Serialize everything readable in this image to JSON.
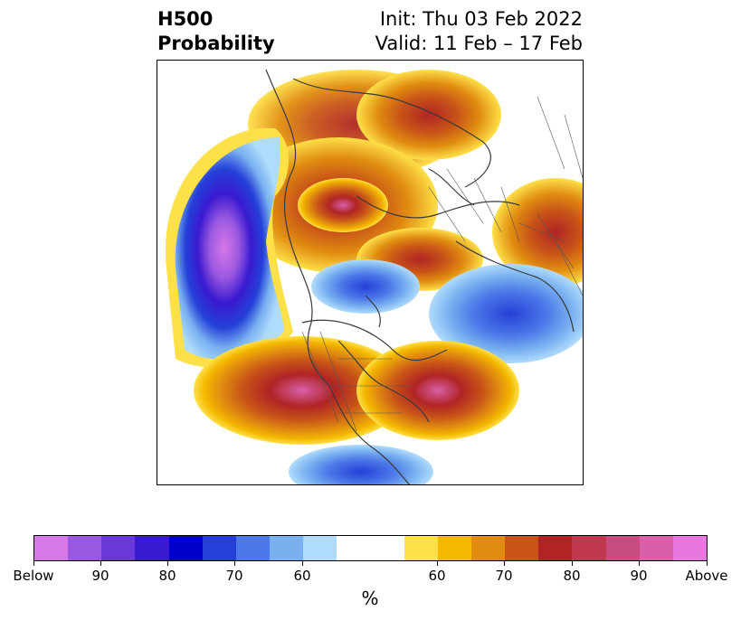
{
  "title": {
    "left_line1": "H500",
    "left_line2": "Probability",
    "right_line1": "Init: Thu 03 Feb 2022",
    "right_line2": "Valid: 11 Feb – 17 Feb"
  },
  "colorbar": {
    "colors": [
      "#d878e8",
      "#9a58e0",
      "#6a38d8",
      "#3a1ad0",
      "#0000cc",
      "#2440d8",
      "#4c78e8",
      "#78b0f0",
      "#b0dcfc",
      "#ffffff",
      "#fee048",
      "#f4b800",
      "#e08c10",
      "#c85418",
      "#b02424",
      "#c03850",
      "#c84c80",
      "#d860a8",
      "#e878e0"
    ],
    "tick_labels": [
      "Below",
      "90",
      "80",
      "70",
      "60",
      "60",
      "70",
      "80",
      "90",
      "Above"
    ],
    "units_label": "%"
  }
}
